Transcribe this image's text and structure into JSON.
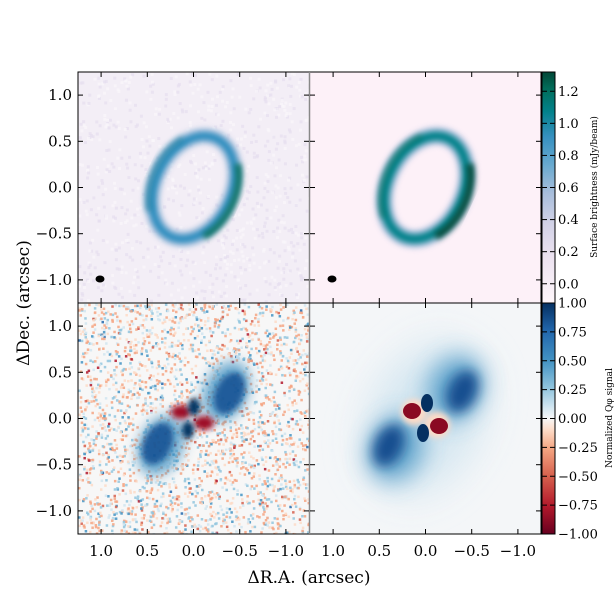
{
  "chart_data": [
    {
      "type": "heatmap",
      "panel": "top-left",
      "description_of_content": "observed total intensity ring",
      "xlim": [
        1.25,
        -1.25
      ],
      "ylim": [
        -1.25,
        1.25
      ],
      "ring": {
        "center": [
          0.0,
          0.0
        ],
        "semi_major": 0.58,
        "semi_minor": 0.42,
        "position_angle_deg": 25,
        "peak": 1.0
      },
      "beam_marker_position": [
        1.0,
        -1.0
      ],
      "colormap": "PuBuGn"
    },
    {
      "type": "heatmap",
      "panel": "top-right",
      "description_of_content": "model total intensity ring",
      "xlim": [
        1.25,
        -1.25
      ],
      "ylim": [
        -1.25,
        1.25
      ],
      "ring": {
        "center": [
          0.0,
          0.0
        ],
        "semi_major": 0.58,
        "semi_minor": 0.42,
        "position_angle_deg": 25,
        "peak": 1.3
      },
      "beam_marker_position": [
        1.0,
        -1.0
      ],
      "colormap": "PuBuGn"
    },
    {
      "type": "heatmap",
      "panel": "bottom-left",
      "description_of_content": "observed normalized Q_phi with noise",
      "xlim": [
        1.25,
        -1.25
      ],
      "ylim": [
        -1.25,
        1.25
      ],
      "colormap": "RdBu"
    },
    {
      "type": "heatmap",
      "panel": "bottom-right",
      "description_of_content": "model normalized Q_phi",
      "xlim": [
        1.25,
        -1.25
      ],
      "ylim": [
        -1.25,
        1.25
      ],
      "colormap": "RdBu"
    }
  ],
  "axes": {
    "xlabel": "ΔR.A. (arcsec)",
    "ylabel": "ΔDec. (arcsec)",
    "x_ticks": [
      1.0,
      0.5,
      0.0,
      -0.5,
      -1.0
    ],
    "x_tick_labels": [
      "1.0",
      "0.5",
      "0.0",
      "−0.5",
      "−1.0"
    ],
    "y_ticks": [
      1.0,
      0.5,
      0.0,
      -0.5,
      -1.0
    ],
    "y_tick_labels": [
      "1.0",
      "0.5",
      "0.0",
      "−0.5",
      "−1.0"
    ]
  },
  "colorbars": {
    "top": {
      "title": "Surface brightness (mJy/beam)",
      "range": [
        -0.12,
        1.32
      ],
      "ticks": [
        0.0,
        0.2,
        0.4,
        0.6,
        0.8,
        1.0,
        1.2
      ],
      "tick_labels": [
        "0.0",
        "0.2",
        "0.4",
        "0.6",
        "0.8",
        "1.0",
        "1.2"
      ]
    },
    "bottom": {
      "title": "Normalized Qφ signal",
      "range": [
        -1.0,
        1.0
      ],
      "ticks": [
        1.0,
        0.75,
        0.5,
        0.25,
        0.0,
        -0.25,
        -0.5,
        -0.75,
        -1.0
      ],
      "tick_labels": [
        "1.00",
        "0.75",
        "0.50",
        "0.25",
        "0.00",
        "−0.25",
        "−0.50",
        "−0.75",
        "−1.00"
      ]
    }
  }
}
